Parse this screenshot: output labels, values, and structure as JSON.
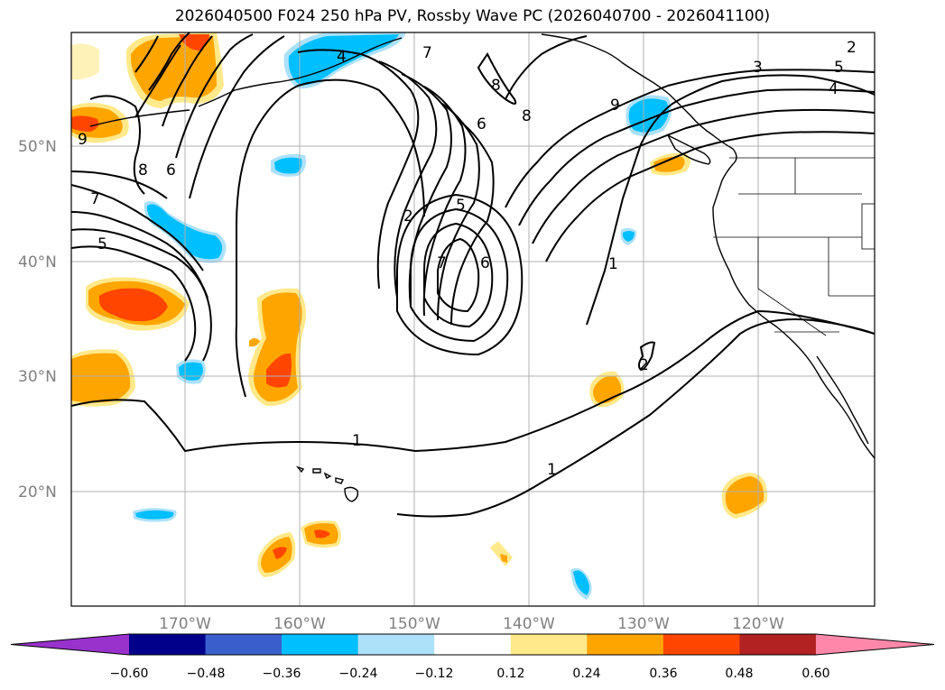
{
  "title": "2026040500 F024 250 hPa PV, Rossby Wave PC (2026040700 - 2026041100)",
  "lat_labels": [
    "50°N",
    "40°N",
    "30°N",
    "20°N"
  ],
  "lon_labels": [
    "170°W",
    "160°W",
    "150°W",
    "140°W",
    "130°W",
    "120°W"
  ],
  "colorbar": {
    "ticks": [
      "−0.60",
      "−0.48",
      "−0.36",
      "−0.24",
      "−0.12",
      "0.12",
      "0.24",
      "0.36",
      "0.48",
      "0.60"
    ],
    "colors": [
      "#9932CC",
      "#00008B",
      "#3A5FCD",
      "#00BFFF",
      "#ADE1FA",
      "#FFFFFF",
      "#FFE98A",
      "#FFA500",
      "#FF4500",
      "#B22222",
      "#FF88AA"
    ]
  },
  "contour_labels": [
    "9",
    "8",
    "7",
    "6",
    "5",
    "4",
    "3",
    "2",
    "1"
  ]
}
